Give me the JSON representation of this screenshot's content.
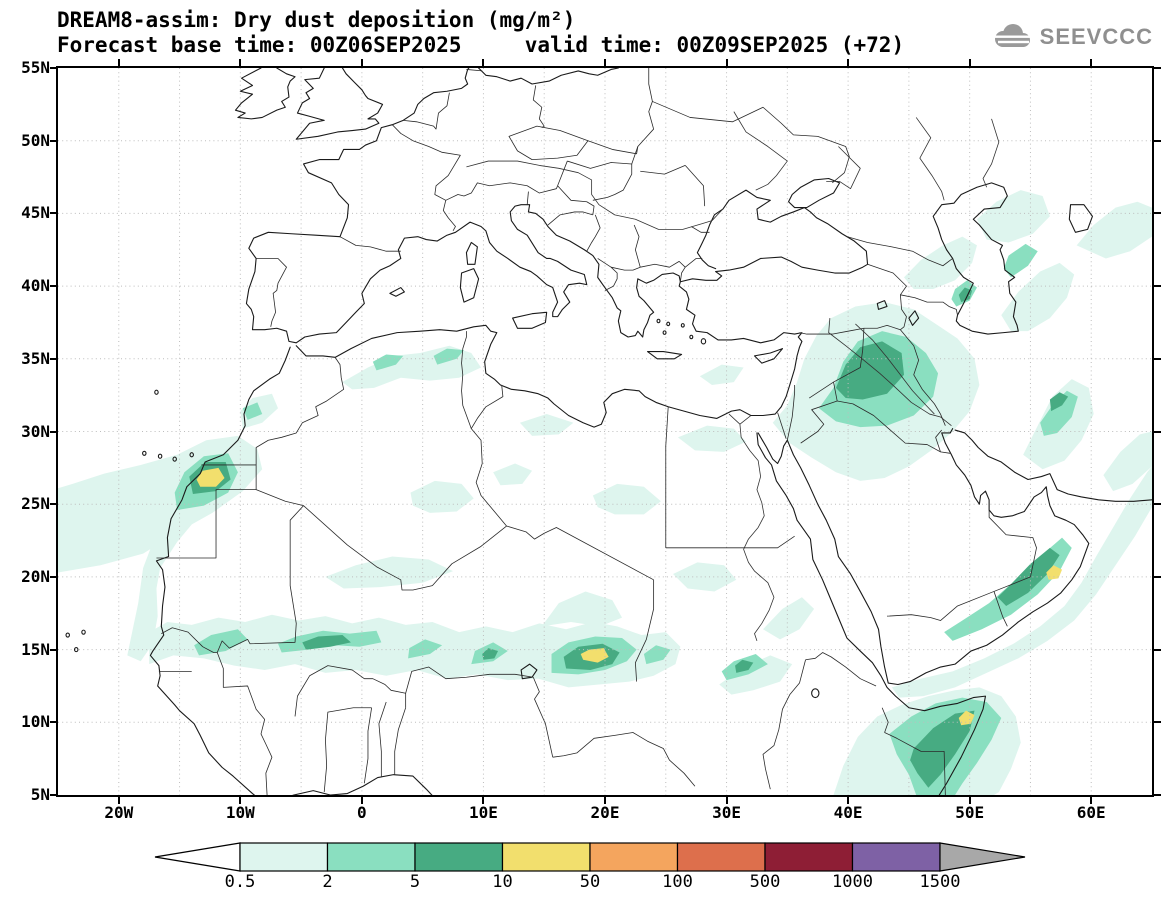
{
  "header": {
    "title_line1": "DREAM8-assim: Dry dust deposition (mg/m²)",
    "title_line2": "Forecast base time: 00Z06SEP2025     valid time: 00Z09SEP2025 (+72)",
    "logo_text": "SEEVCCC"
  },
  "map": {
    "lat_ticks": [
      "55N",
      "50N",
      "45N",
      "40N",
      "35N",
      "30N",
      "25N",
      "20N",
      "15N",
      "10N",
      "5N"
    ],
    "lon_ticks": [
      "20W",
      "10W",
      "0",
      "10E",
      "20E",
      "30E",
      "40E",
      "50E",
      "60E"
    ],
    "lon_min": -25,
    "lon_max": 65,
    "lat_min": 5,
    "lat_max": 55,
    "grid_step_deg": 5
  },
  "legend": {
    "labels": [
      "0.5",
      "2",
      "5",
      "10",
      "50",
      "100",
      "500",
      "1000",
      "1500"
    ],
    "thresholds": [
      0.5,
      2,
      5,
      10,
      50,
      100,
      500,
      1000,
      1500
    ],
    "colors": [
      "#ffffff",
      "#def5ee",
      "#8adfc0",
      "#47ab82",
      "#f2df6d",
      "#f4a55e",
      "#dd6f4c",
      "#8e1e35",
      "#7e61a5",
      "#a8a8a8"
    ]
  }
}
